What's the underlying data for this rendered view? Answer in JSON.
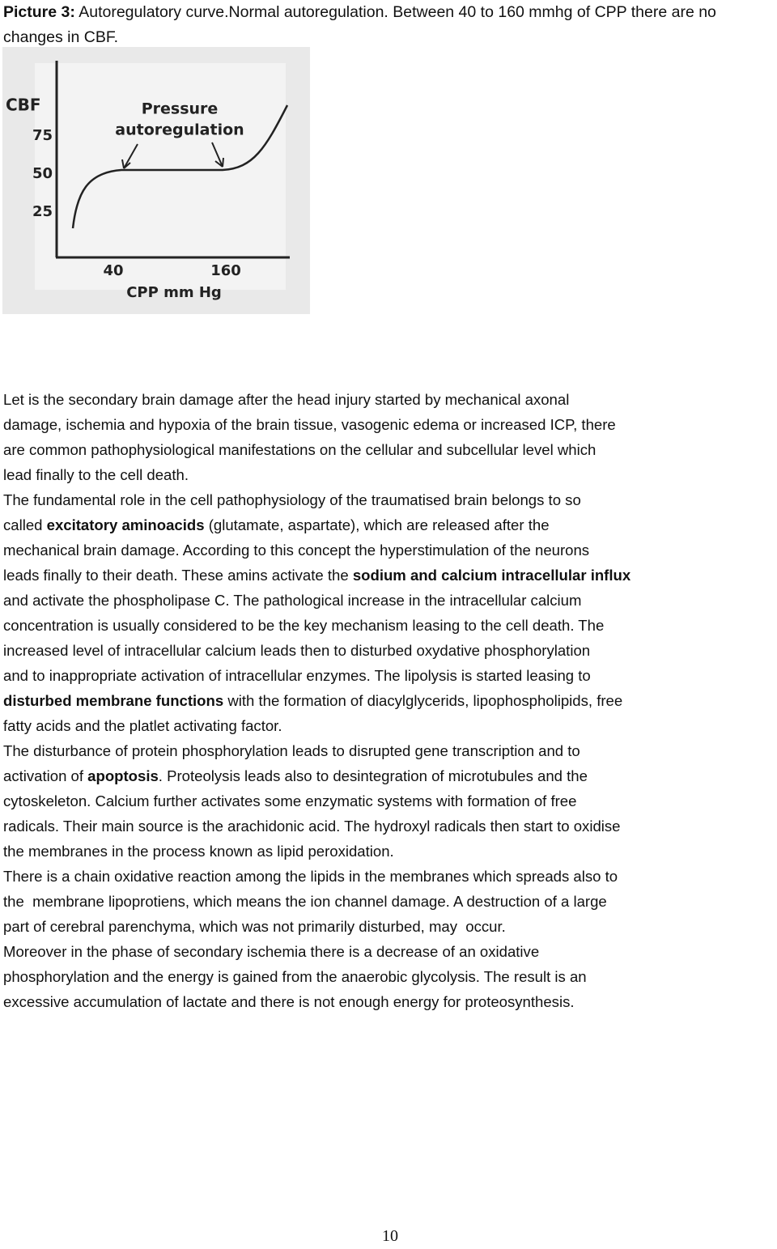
{
  "caption": {
    "label": "Picture 3:",
    "text": " Autoregulatory curve.Normal autoregulation. Between 40 to 160 mmhg of CPP there are no changes in CBF."
  },
  "figure": {
    "y_label": "CBF",
    "y_ticks": [
      "75",
      "50",
      "25"
    ],
    "x_ticks": [
      "40",
      "160"
    ],
    "x_label": "CPP mm Hg",
    "annotation": [
      "Pressure",
      "autoregulation"
    ]
  },
  "paragraphs": [
    {
      "lines": [
        [
          "Let is the secondary brain damage after the head injury started by mechanical axonal"
        ],
        [
          "damage, ischemia and hypoxia of the brain tissue, vasogenic edema or increased ICP, there"
        ],
        [
          "are common pathophysiological manifestations on the cellular and subcellular level which"
        ],
        [
          "lead finally to the cell death."
        ]
      ]
    },
    {
      "lines": [
        [
          "The fundamental role in the cell pathophysiology of the traumatised brain belongs to so"
        ],
        [
          "called ",
          {
            "text": "excitatory aminoacids",
            "bold": true
          },
          " (glutamate, aspartate), which are released after the"
        ],
        [
          "mechanical brain damage. According to this concept the hyperstimulation of the neurons"
        ],
        [
          "leads finally to their death. These amins activate the ",
          {
            "text": "sodium and calcium intracellular influx",
            "bold": true
          }
        ],
        [
          "and activate the phospholipase C. The pathological increase in the intracellular calcium"
        ],
        [
          "concentration is usually considered to be the key mechanism leasing to the cell death. The"
        ],
        [
          "increased level of intracellular calcium leads then to disturbed oxydative phosphorylation"
        ],
        [
          "and to inappropriate activation of intracellular enzymes. The lipolysis is started leasing to"
        ],
        [
          {
            "text": "disturbed membrane functions",
            "bold": true
          },
          " with the formation of diacylglycerids, lipophospholipids, free"
        ],
        [
          "fatty acids and the platlet activating factor."
        ]
      ]
    },
    {
      "lines": [
        [
          "The disturbance of protein phosphorylation leads to disrupted gene transcription and to"
        ],
        [
          "activation of ",
          {
            "text": "apoptosis",
            "bold": true
          },
          ". Proteolysis leads also to desintegration of microtubules and the"
        ],
        [
          "cytoskeleton. Calcium further activates some enzymatic systems with formation of free"
        ],
        [
          "radicals. Their main source is the arachidonic acid. The hydroxyl radicals then start to oxidise"
        ],
        [
          "the membranes in the process known as lipid peroxidation."
        ]
      ]
    },
    {
      "lines": [
        [
          "There is a chain oxidative reaction among the lipids in the membranes which spreads also to"
        ],
        [
          "the  membrane lipoprotiens, which means the ion channel damage. A destruction of a large"
        ],
        [
          "part of cerebral parenchyma, which was not primarily disturbed, may  occur."
        ]
      ]
    },
    {
      "lines": [
        [
          "Moreover in the phase of secondary ischemia there is a decrease of an oxidative"
        ],
        [
          "phosphorylation and the energy is gained from the anaerobic glycolysis. The result is an"
        ],
        [
          "excessive accumulation of lactate and there is not enough energy for proteosynthesis."
        ]
      ]
    }
  ],
  "page_number": "10"
}
